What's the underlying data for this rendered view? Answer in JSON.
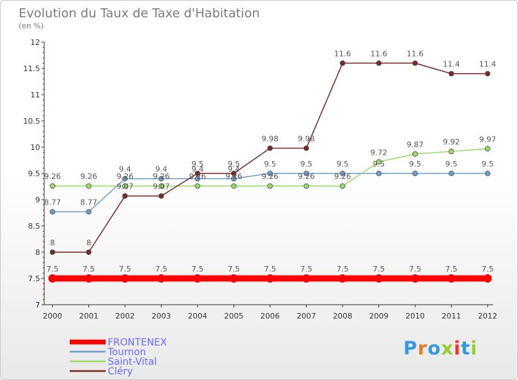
{
  "chart_data": {
    "type": "line",
    "title": "Evolution du Taux de Taxe d'Habitation",
    "subtitle": "(en %)",
    "x": [
      "2000",
      "2001",
      "2002",
      "2003",
      "2004",
      "2005",
      "2006",
      "2007",
      "2008",
      "2009",
      "2010",
      "2011",
      "2012"
    ],
    "ylim": [
      7,
      12
    ],
    "yticks": [
      "7",
      "7.5",
      "8",
      "8.5",
      "9",
      "9.5",
      "10",
      "10.5",
      "11",
      "11.5",
      "12"
    ],
    "grid": false,
    "legend_position": "bottom-left",
    "series": [
      {
        "name": "FRONTENEX",
        "color": "#ff0000",
        "values": [
          7.5,
          7.5,
          7.5,
          7.5,
          7.5,
          7.5,
          7.5,
          7.5,
          7.5,
          7.5,
          7.5,
          7.5,
          7.5
        ],
        "labels": [
          "7.5",
          "7.5",
          "7.5",
          "7.5",
          "7.5",
          "7.5",
          "7.5",
          "7.5",
          "7.5",
          "7.5",
          "7.5",
          "7.5",
          "7.5"
        ]
      },
      {
        "name": "Tournon",
        "color": "#6fa0cc",
        "values": [
          8.77,
          8.77,
          9.4,
          9.4,
          9.4,
          9.4,
          9.5,
          9.5,
          9.5,
          9.5,
          9.5,
          9.5,
          9.5
        ],
        "labels": [
          "8.77",
          "8.77",
          "9.4",
          "9.4",
          "9.4",
          "9.4",
          "9.5",
          "9.5",
          "9.5",
          "9.5",
          "9.5",
          "9.5",
          "9.5"
        ]
      },
      {
        "name": "Saint-Vital",
        "color": "#99dd66",
        "values": [
          9.26,
          9.26,
          9.26,
          9.26,
          9.26,
          9.26,
          9.26,
          9.26,
          9.26,
          9.72,
          9.87,
          9.92,
          9.97
        ],
        "labels": [
          "9.26",
          "9.26",
          "9.26",
          "9.26",
          "9.26",
          "9.26",
          "9.26",
          "9.26",
          "9.26",
          "9.72",
          "9.87",
          "9.92",
          "9.97"
        ]
      },
      {
        "name": "Cléry",
        "color": "#7a2a2a",
        "values": [
          8,
          8,
          9.07,
          9.07,
          9.5,
          9.5,
          9.98,
          9.98,
          11.6,
          11.6,
          11.6,
          11.4,
          11.4
        ],
        "labels": [
          "8",
          "8",
          "9.07",
          "9.07",
          "9.5",
          "9.5",
          "9.98",
          "9.98",
          "11.6",
          "11.6",
          "11.6",
          "11.4",
          "11.4"
        ]
      }
    ]
  },
  "logo": {
    "text": "Proxiti"
  }
}
